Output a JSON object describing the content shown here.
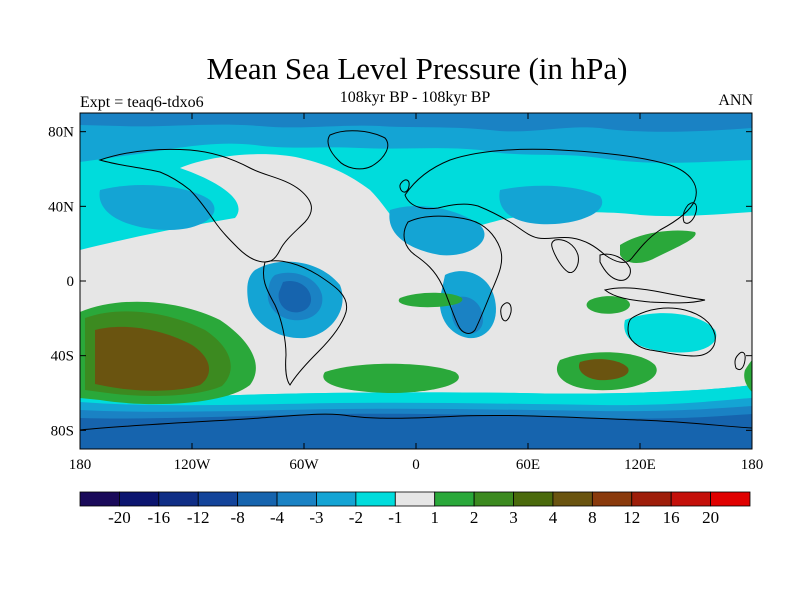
{
  "title": "Mean Sea Level Pressure (in hPa)",
  "subtitle": "108kyr BP - 108kyr BP",
  "left_label": "Expt = teaq6-tdxo6",
  "right_label": "ANN",
  "lat_labels": [
    "80N",
    "40N",
    "0",
    "40S",
    "80S"
  ],
  "lon_labels": [
    "180",
    "120W",
    "60W",
    "0",
    "60E",
    "120E",
    "180"
  ],
  "colorbar": {
    "labels": [
      "-20",
      "-16",
      "-12",
      "-8",
      "-4",
      "-3",
      "-2",
      "-1",
      "1",
      "2",
      "3",
      "4",
      "8",
      "12",
      "16",
      "20"
    ],
    "colors": [
      "#1a0a5a",
      "#0c1570",
      "#102e86",
      "#13449a",
      "#1664ae",
      "#1a82c4",
      "#14a4d4",
      "#00dcdc",
      "#e6e6e6",
      "#2aa83a",
      "#3c8a20",
      "#4a6a0c",
      "#6a5410",
      "#8a3a0c",
      "#9e1e0a",
      "#c4100a",
      "#e00000"
    ]
  },
  "colors": {
    "land_outline": "#000000",
    "neutral": "#e6e6e6"
  }
}
